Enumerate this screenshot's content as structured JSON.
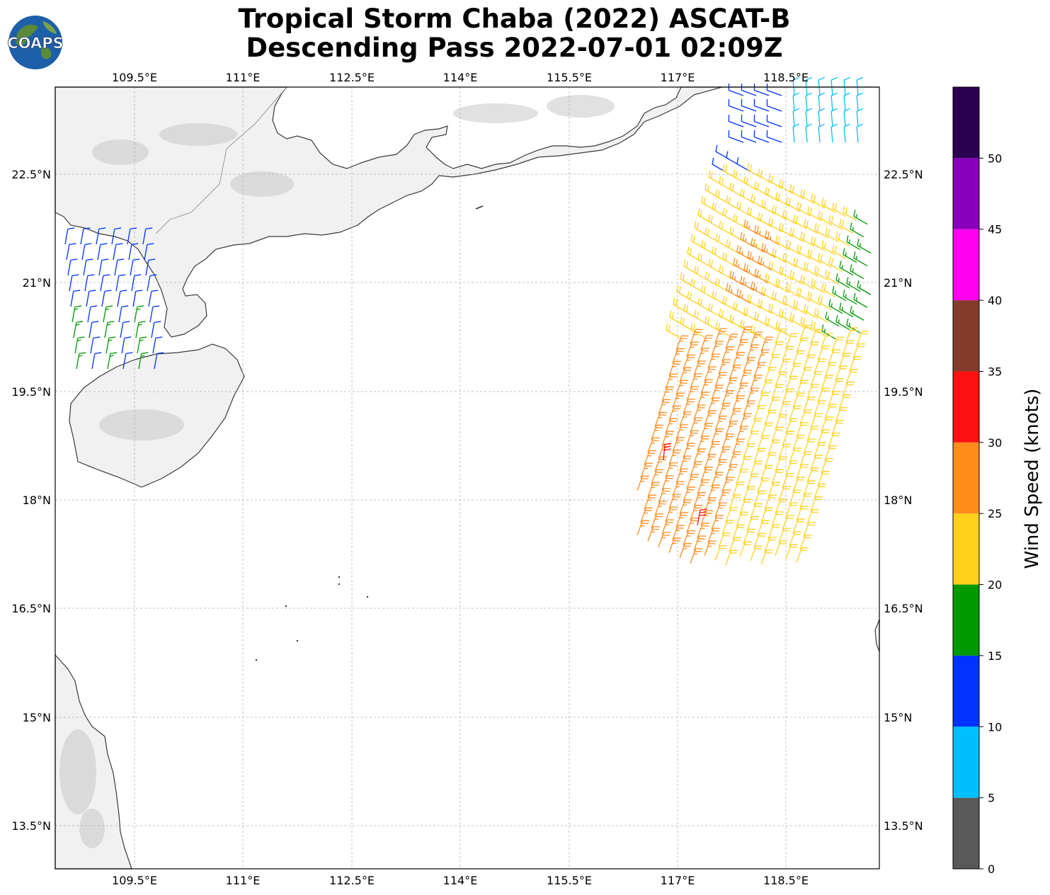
{
  "title": {
    "line1": "Tropical Storm Chaba (2022) ASCAT-B",
    "line2": "Descending Pass 2022-07-01 02:09Z"
  },
  "logo": {
    "text": "COAPS",
    "icon": "globe-logo-icon"
  },
  "map": {
    "lon_ticks": [
      "109.5°E",
      "111°E",
      "112.5°E",
      "114°E",
      "115.5°E",
      "117°E",
      "118.5°E"
    ],
    "lat_ticks": [
      "22.5°N",
      "21°N",
      "19.5°N",
      "18°N",
      "16.5°N",
      "15°N",
      "13.5°N"
    ],
    "gridlines": true,
    "colors": {
      "land": "#f2f2f2",
      "coast": "#333333",
      "grid": "#b0b0b0"
    }
  },
  "colorbar": {
    "label": "Wind Speed (knots)",
    "ticks": [
      "0",
      "5",
      "10",
      "15",
      "20",
      "25",
      "30",
      "35",
      "40",
      "45",
      "50"
    ],
    "colors": [
      "#595959",
      "#00bfff",
      "#0033ff",
      "#009900",
      "#009900",
      "#ffd11a",
      "#ff8c1a",
      "#ff1111",
      "#833c2b",
      "#ff00f0",
      "#8800bb",
      "#2c0050"
    ],
    "bins": [
      {
        "from": 0,
        "to": 5,
        "color": "#595959"
      },
      {
        "from": 5,
        "to": 10,
        "color": "#00bfff"
      },
      {
        "from": 10,
        "to": 15,
        "color": "#0033ff"
      },
      {
        "from": 15,
        "to": 20,
        "color": "#009900"
      },
      {
        "from": 20,
        "to": 25,
        "color": "#ffd11a"
      },
      {
        "from": 25,
        "to": 30,
        "color": "#ff8c1a"
      },
      {
        "from": 30,
        "to": 35,
        "color": "#ff1111"
      },
      {
        "from": 35,
        "to": 40,
        "color": "#833c2b"
      },
      {
        "from": 40,
        "to": 45,
        "color": "#ff00f0"
      },
      {
        "from": 45,
        "to": 50,
        "color": "#8800bb"
      },
      {
        "from": 50,
        "to": 55,
        "color": "#2c0050"
      }
    ]
  }
}
